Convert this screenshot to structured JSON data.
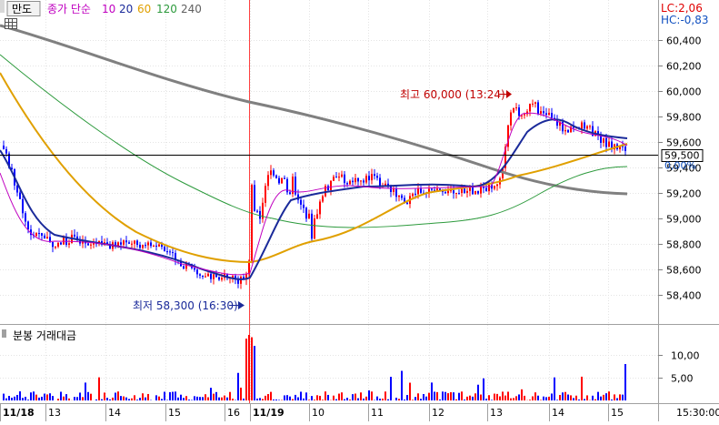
{
  "toolbar": {
    "button_label": "만도",
    "ma_label": "종가 단순",
    "periods": [
      {
        "label": "10",
        "color": "#c000c0"
      },
      {
        "label": "20",
        "color": "#1a2a9a"
      },
      {
        "label": "60",
        "color": "#e0a000"
      },
      {
        "label": "120",
        "color": "#2c9a3c"
      },
      {
        "label": "240",
        "color": "#606060"
      }
    ]
  },
  "indicators": {
    "lc": "LC:2,06",
    "hc": "HC:-0,83"
  },
  "price_axis": {
    "ticks": [
      {
        "label": "60,400",
        "value": 60400
      },
      {
        "label": "60,200",
        "value": 60200
      },
      {
        "label": "60,000",
        "value": 60000
      },
      {
        "label": "59,800",
        "value": 59800
      },
      {
        "label": "59,600",
        "value": 59600
      },
      {
        "label": "59,400",
        "value": 59400
      },
      {
        "label": "59,200",
        "value": 59200
      },
      {
        "label": "59,000",
        "value": 59000
      },
      {
        "label": "58,800",
        "value": 58800
      },
      {
        "label": "58,600",
        "value": 58600
      },
      {
        "label": "58,400",
        "value": 58400
      }
    ],
    "current_price": "59,500",
    "current_value": 59500,
    "current_pct": "0,00%"
  },
  "annotations": {
    "high": "최고 60,000 (13:24)",
    "low": "최저 58,300 (16:30)"
  },
  "volume": {
    "title": "분봉 거래대금",
    "ticks": [
      {
        "label": "10,00",
        "value": 10
      },
      {
        "label": "5,00",
        "value": 5
      }
    ]
  },
  "time_axis": {
    "labels": [
      "11/18",
      "13",
      "14",
      "15",
      "16",
      "11/19",
      "10",
      "11",
      "12",
      "13",
      "14",
      "15"
    ],
    "end_label": "15:30:00"
  },
  "colors": {
    "up": "#ff0000",
    "down": "#0000ff",
    "ma10": "#c000c0",
    "ma20": "#1a2a9a",
    "ma60": "#e0a000",
    "ma120": "#2c9a3c",
    "ma240": "#808080"
  }
}
